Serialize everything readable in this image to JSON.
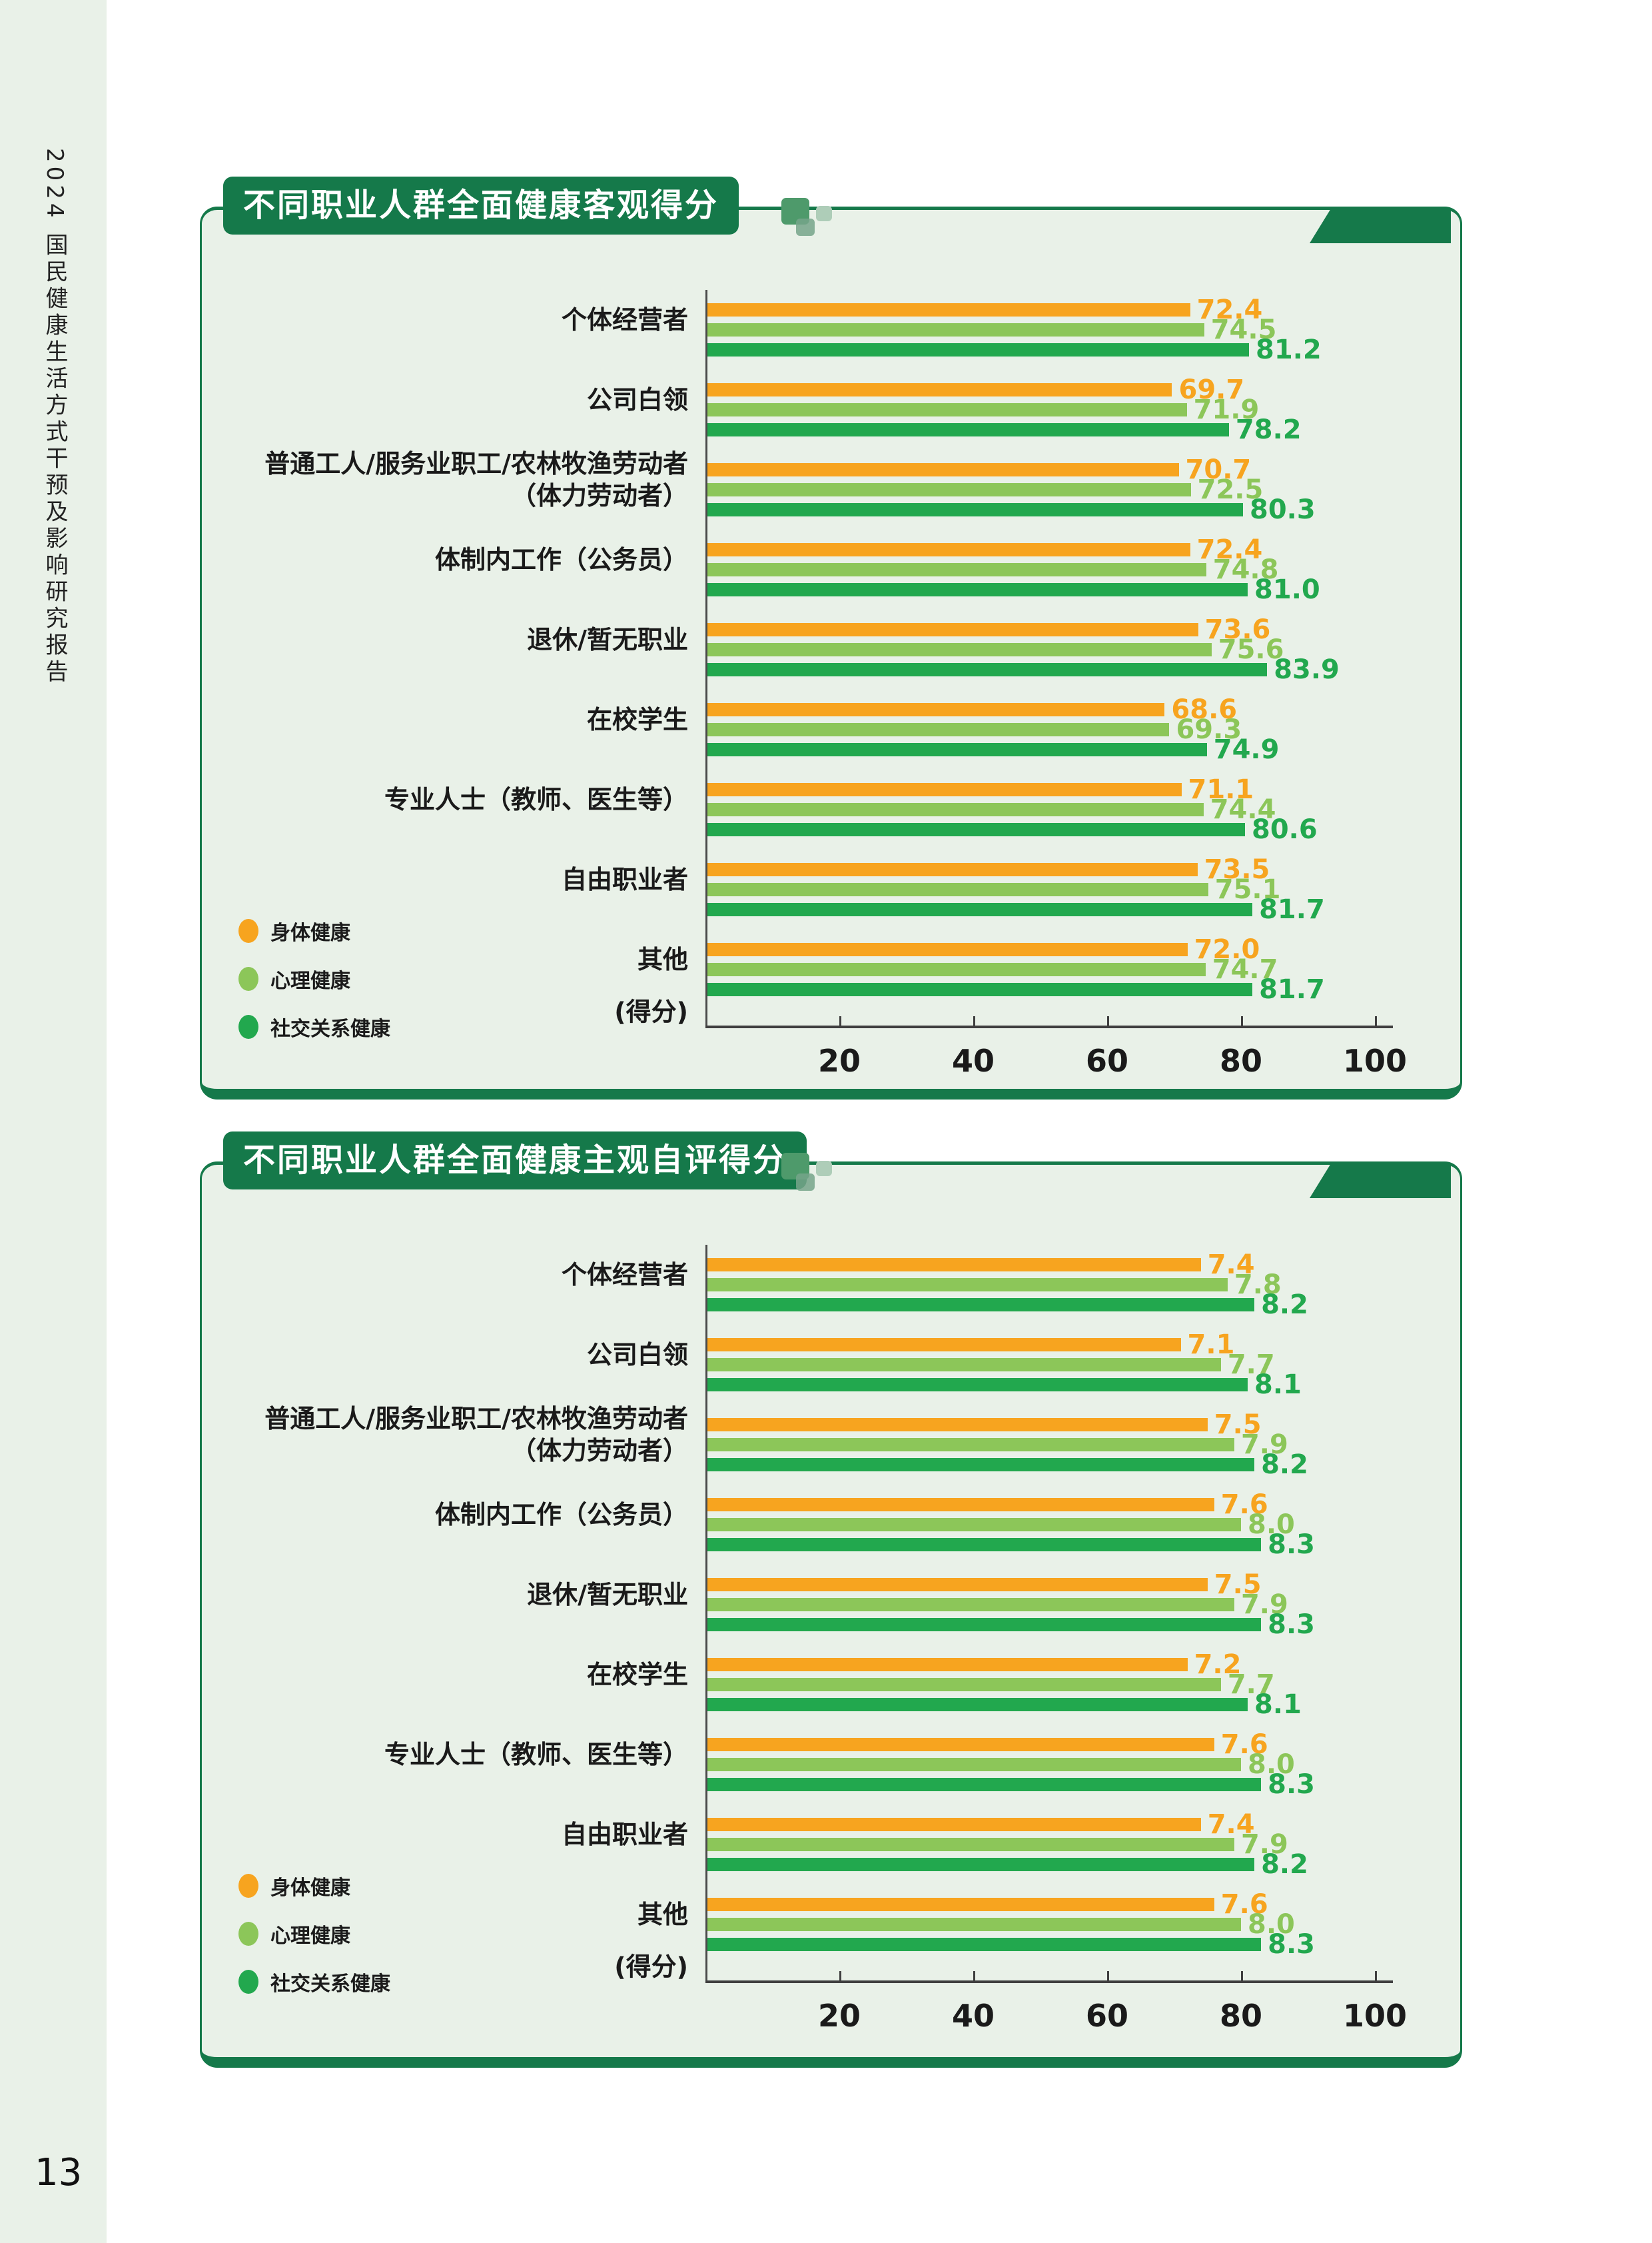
{
  "page": {
    "sidebar_text": "2024 国民健康生活方式干预及影响研究报告",
    "page_number": "13"
  },
  "colors": {
    "dark_green": "#15794A",
    "panel_background": "#E9F1E8",
    "physical_orange": "#F7A41F",
    "mental_light_green": "#8CC659",
    "social_green": "#22A84E"
  },
  "legend": {
    "items": [
      "身体健康",
      "心理健康",
      "社交关系健康"
    ]
  },
  "chart_data": [
    {
      "type": "bar",
      "orientation": "horizontal",
      "title": "不同职业人群全面健康客观得分",
      "categories": [
        "个体经营者",
        "公司白领",
        "普通工人/服务业职工/农林牧渔劳动者\n（体力劳动者）",
        "体制内工作（公务员）",
        "退休/暂无职业",
        "在校学生",
        "专业人士（教师、医生等）",
        "自由职业者",
        "其他"
      ],
      "series": [
        {
          "name": "身体健康",
          "color": "#F7A41F",
          "values": [
            72.4,
            69.7,
            70.7,
            72.4,
            73.6,
            68.6,
            71.1,
            73.5,
            72.0
          ]
        },
        {
          "name": "心理健康",
          "color": "#8CC659",
          "values": [
            74.5,
            71.9,
            72.5,
            74.8,
            75.6,
            69.3,
            74.4,
            75.1,
            74.7
          ]
        },
        {
          "name": "社交关系健康",
          "color": "#22A84E",
          "values": [
            81.2,
            78.2,
            80.3,
            81.0,
            83.9,
            74.9,
            80.6,
            81.7,
            81.7
          ]
        }
      ],
      "xlim": [
        0,
        100
      ],
      "xticks": [
        20,
        40,
        60,
        80,
        100
      ],
      "axis_unit_label": "(得分)",
      "legend_position": "bottom-left",
      "grid": false,
      "value_to_axis_scale": 1
    },
    {
      "type": "bar",
      "orientation": "horizontal",
      "title": "不同职业人群全面健康主观自评得分",
      "categories": [
        "个体经营者",
        "公司白领",
        "普通工人/服务业职工/农林牧渔劳动者\n（体力劳动者）",
        "体制内工作（公务员）",
        "退休/暂无职业",
        "在校学生",
        "专业人士（教师、医生等）",
        "自由职业者",
        "其他"
      ],
      "series": [
        {
          "name": "身体健康",
          "color": "#F7A41F",
          "values": [
            7.4,
            7.1,
            7.5,
            7.6,
            7.5,
            7.2,
            7.6,
            7.4,
            7.6
          ]
        },
        {
          "name": "心理健康",
          "color": "#8CC659",
          "values": [
            7.8,
            7.7,
            7.9,
            8.0,
            7.9,
            7.7,
            8.0,
            7.9,
            8.0
          ]
        },
        {
          "name": "社交关系健康",
          "color": "#22A84E",
          "values": [
            8.2,
            8.1,
            8.2,
            8.3,
            8.3,
            8.1,
            8.3,
            8.2,
            8.3
          ]
        }
      ],
      "xlim": [
        0,
        100
      ],
      "xticks": [
        20,
        40,
        60,
        80,
        100
      ],
      "axis_unit_label": "(得分)",
      "legend_position": "bottom-left",
      "grid": false,
      "value_to_axis_scale": 10
    }
  ]
}
